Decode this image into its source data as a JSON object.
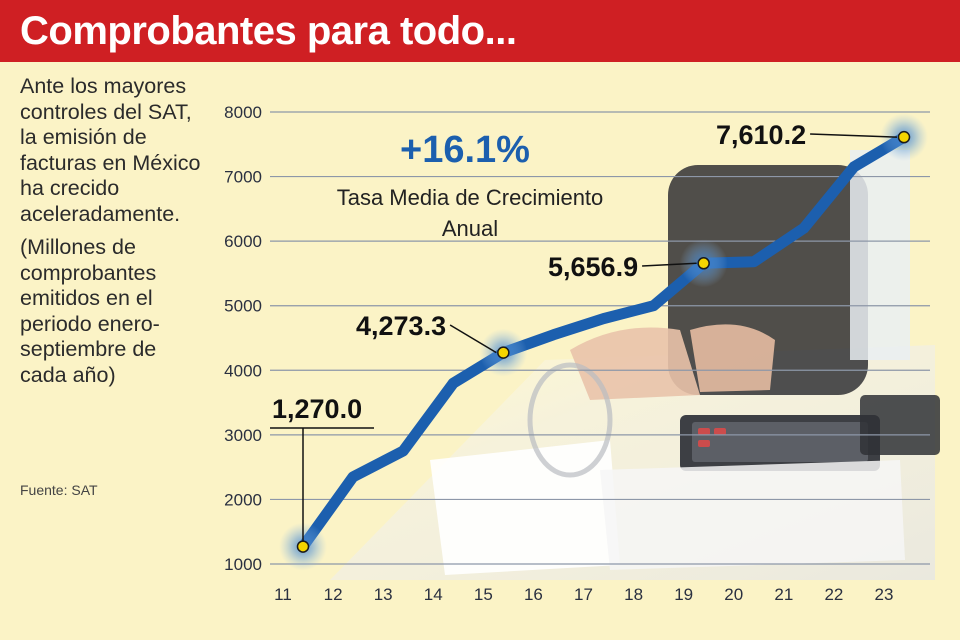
{
  "header": {
    "title": "Comprobantes para todo..."
  },
  "sidebar": {
    "description": "Ante los mayores controles del SAT, la emisión de facturas en México ha crecido aceleradamente.",
    "units": "(Millones de comprobantes emitidos en el periodo enero-septiembre de cada año)",
    "source": "Fuente: SAT"
  },
  "colors": {
    "header": "#cf1f23",
    "background": "#fbf3c6",
    "line": "#1c5fae",
    "marker": "#f4d400"
  },
  "chart_data": {
    "type": "line",
    "title": "",
    "xlabel": "",
    "ylabel": "",
    "x": [
      "11",
      "12",
      "13",
      "14",
      "15",
      "16",
      "17",
      "18",
      "19",
      "20",
      "21",
      "22",
      "23"
    ],
    "ylim": [
      1000,
      8000
    ],
    "yticks": [
      "8000",
      "7000",
      "6000",
      "5000",
      "4000",
      "3000",
      "2000",
      "1000"
    ],
    "grid": "horizontal",
    "series": [
      {
        "values": [
          1270.0,
          2350,
          2750,
          3800,
          4273.3,
          4550,
          4800,
          5000,
          5656.9,
          5680,
          6200,
          7150,
          7610.2
        ]
      }
    ],
    "data_labels": [
      {
        "index": 0,
        "label": "1,270.0"
      },
      {
        "index": 4,
        "label": "4,273.3"
      },
      {
        "index": 8,
        "label": "5,656.9"
      },
      {
        "index": 12,
        "label": "7,610.2"
      }
    ],
    "annotation": {
      "value": "+16.1%",
      "text_line1": "Tasa Media de Crecimiento",
      "text_line2": "Anual"
    }
  }
}
